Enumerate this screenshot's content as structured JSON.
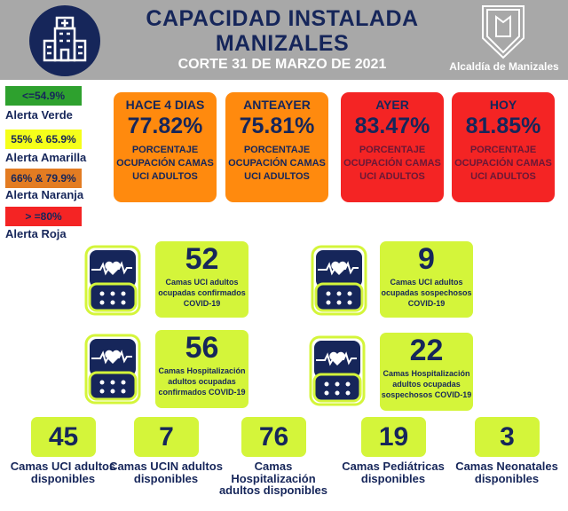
{
  "header": {
    "title_line1": "CAPACIDAD INSTALADA",
    "title_line2": "MANIZALES",
    "subtitle": "CORTE 31 DE MARZO DE 2021",
    "logo_text": "Alcaldía de Manizales",
    "icon": "hospital-building-icon"
  },
  "legend": [
    {
      "range": "<=54.9%",
      "label": "Alerta Verde",
      "color": "#2ea12e"
    },
    {
      "range": "55% & 65.9%",
      "label": "Alerta Amarilla",
      "color": "#f5ff1a"
    },
    {
      "range": "66% & 79.9%",
      "label": "Alerta Naranja",
      "color": "#e37c22"
    },
    {
      "range": "> =80%",
      "label": "Alerta Roja",
      "color": "#f42424"
    }
  ],
  "cards": [
    {
      "period": "HACE 4 DIAS",
      "value": "77.82%",
      "desc": "PORCENTAJE OCUPACIÓN CAMAS UCI ADULTOS",
      "alert": "naranja"
    },
    {
      "period": "ANTEAYER",
      "value": "75.81%",
      "desc": "PORCENTAJE OCUPACIÓN CAMAS UCI ADULTOS",
      "alert": "naranja"
    },
    {
      "period": "AYER",
      "value": "83.47%",
      "desc": "PORCENTAJE OCUPACIÓN CAMAS UCI ADULTOS",
      "alert": "roja"
    },
    {
      "period": "HOY",
      "value": "81.85%",
      "desc": "PORCENTAJE OCUPACIÓN CAMAS UCI ADULTOS",
      "alert": "roja"
    }
  ],
  "occupied": [
    {
      "value": "52",
      "desc": "Camas UCI adultos ocupadas confirmados COVID-19"
    },
    {
      "value": "9",
      "desc": "Camas UCI adultos ocupadas sospechosos COVID-19"
    },
    {
      "value": "56",
      "desc": "Camas Hospitalización adultos ocupadas confirmados COVID-19"
    },
    {
      "value": "22",
      "desc": "Camas Hospitalización adultos ocupadas sospechosos COVID-19"
    }
  ],
  "available": [
    {
      "value": "45",
      "desc": "Camas UCI adultos disponibles"
    },
    {
      "value": "7",
      "desc": "Camas UCIN adultos disponibles"
    },
    {
      "value": "76",
      "desc": "Camas Hospitalización adultos disponibles"
    },
    {
      "value": "19",
      "desc": "Camas Pediátricas disponibles"
    },
    {
      "value": "3",
      "desc": "Camas Neonatales disponibles"
    }
  ]
}
